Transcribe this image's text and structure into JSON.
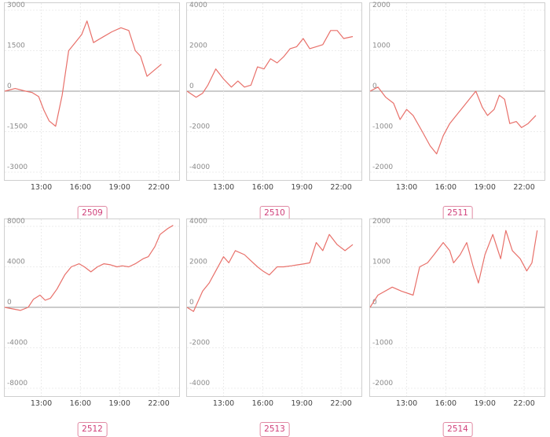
{
  "chart_data": [
    {
      "type": "line",
      "label": "2509",
      "yticks": [
        3000,
        1500,
        0,
        -1500,
        -3000
      ],
      "ylim": [
        -3000,
        3000
      ],
      "xticks": [
        "13:00",
        "16:00",
        "19:00",
        "22:00"
      ],
      "xtick_positions": [
        13,
        16,
        19,
        22
      ],
      "xlim": [
        10.2,
        23.5
      ],
      "grid": true,
      "color": "#e8706a",
      "series": [
        {
          "x": [
            10.2,
            11.0,
            11.8,
            12.3,
            12.8,
            13.2,
            13.6,
            14.1,
            14.6,
            15.1,
            15.6,
            16.1,
            16.5,
            17.0,
            17.7,
            18.4,
            19.1,
            19.7,
            20.2,
            20.6,
            21.1,
            22.2
          ],
          "y": [
            0,
            100,
            0,
            -50,
            -200,
            -700,
            -1100,
            -1300,
            -150,
            1500,
            1800,
            2100,
            2600,
            1800,
            2000,
            2200,
            2350,
            2250,
            1500,
            1300,
            550,
            1000
          ]
        }
      ]
    },
    {
      "type": "line",
      "label": "2510",
      "yticks": [
        4000,
        2000,
        0,
        -2000,
        -4000
      ],
      "ylim": [
        -4000,
        4000
      ],
      "xticks": [
        "13:00",
        "16:00",
        "19:00",
        "22:00"
      ],
      "xtick_positions": [
        13,
        16,
        19,
        22
      ],
      "xlim": [
        10.2,
        23.5
      ],
      "grid": true,
      "color": "#e8706a",
      "series": [
        {
          "x": [
            10.2,
            10.9,
            11.4,
            11.8,
            12.4,
            13.0,
            13.6,
            14.1,
            14.6,
            15.1,
            15.6,
            16.1,
            16.6,
            17.1,
            17.6,
            18.1,
            18.6,
            19.1,
            19.6,
            20.1,
            20.6,
            21.2,
            21.7,
            22.2,
            22.9
          ],
          "y": [
            0,
            -300,
            -100,
            300,
            1100,
            600,
            200,
            500,
            200,
            300,
            1200,
            1100,
            1600,
            1400,
            1700,
            2100,
            2200,
            2600,
            2100,
            2200,
            2300,
            3000,
            3000,
            2600,
            2700
          ]
        }
      ]
    },
    {
      "type": "line",
      "label": "2511",
      "yticks": [
        2000,
        1000,
        0,
        -1000,
        -2000
      ],
      "ylim": [
        -2000,
        2000
      ],
      "xticks": [
        "13:00",
        "16:00",
        "19:00",
        "22:00"
      ],
      "xtick_positions": [
        13,
        16,
        19,
        22
      ],
      "xlim": [
        10.2,
        23.5
      ],
      "grid": true,
      "color": "#e8706a",
      "series": [
        {
          "x": [
            10.2,
            10.8,
            11.4,
            12.0,
            12.5,
            13.0,
            13.5,
            14.2,
            14.8,
            15.3,
            15.8,
            16.3,
            16.8,
            17.3,
            17.8,
            18.3,
            18.8,
            19.2,
            19.7,
            20.1,
            20.5,
            20.9,
            21.4,
            21.8,
            22.3,
            22.9
          ],
          "y": [
            0,
            100,
            -150,
            -300,
            -700,
            -450,
            -600,
            -1000,
            -1350,
            -1550,
            -1100,
            -800,
            -600,
            -400,
            -200,
            0,
            -400,
            -600,
            -450,
            -100,
            -200,
            -800,
            -750,
            -900,
            -800,
            -600
          ]
        }
      ]
    },
    {
      "type": "line",
      "label": "2512",
      "yticks": [
        8000,
        4000,
        0,
        -4000,
        -8000
      ],
      "ylim": [
        -8000,
        8000
      ],
      "xticks": [
        "13:00",
        "16:00",
        "19:00",
        "22:00"
      ],
      "xtick_positions": [
        13,
        16,
        19,
        22
      ],
      "xlim": [
        10.2,
        23.5
      ],
      "grid": true,
      "color": "#e8706a",
      "series": [
        {
          "x": [
            10.2,
            11.4,
            12.0,
            12.4,
            12.9,
            13.3,
            13.7,
            14.2,
            14.8,
            15.3,
            15.9,
            16.3,
            16.8,
            17.3,
            17.8,
            18.3,
            18.8,
            19.2,
            19.7,
            20.2,
            20.8,
            21.2,
            21.7,
            22.1,
            22.7,
            23.1
          ],
          "y": [
            0,
            -300,
            0,
            800,
            1200,
            700,
            900,
            1800,
            3200,
            4000,
            4300,
            4000,
            3500,
            4000,
            4300,
            4200,
            4000,
            4100,
            4000,
            4300,
            4800,
            5000,
            6000,
            7200,
            7800,
            8100
          ]
        }
      ]
    },
    {
      "type": "line",
      "label": "2513",
      "yticks": [
        4000,
        2000,
        0,
        -2000,
        -4000
      ],
      "ylim": [
        -4000,
        4000
      ],
      "xticks": [
        "13:00",
        "16:00",
        "19:00",
        "22:00"
      ],
      "xtick_positions": [
        13,
        16,
        19,
        22
      ],
      "xlim": [
        10.2,
        23.5
      ],
      "grid": true,
      "color": "#e8706a",
      "series": [
        {
          "x": [
            10.2,
            10.7,
            11.4,
            11.9,
            12.4,
            13.0,
            13.4,
            13.9,
            14.6,
            15.1,
            15.6,
            16.0,
            16.5,
            17.1,
            17.6,
            18.2,
            18.7,
            19.2,
            19.6,
            20.1,
            20.6,
            21.1,
            21.7,
            22.3,
            22.9
          ],
          "y": [
            0,
            -200,
            800,
            1200,
            1800,
            2500,
            2200,
            2800,
            2600,
            2300,
            2000,
            1800,
            1600,
            2000,
            2000,
            2050,
            2100,
            2150,
            2200,
            3200,
            2800,
            3600,
            3100,
            2800,
            3100
          ]
        }
      ]
    },
    {
      "type": "line",
      "label": "2514",
      "yticks": [
        2000,
        1000,
        0,
        -1000,
        -2000
      ],
      "ylim": [
        -2000,
        2000
      ],
      "xticks": [
        "13:00",
        "16:00",
        "19:00",
        "22:00"
      ],
      "xtick_positions": [
        13,
        16,
        19,
        22
      ],
      "xlim": [
        10.2,
        23.5
      ],
      "grid": true,
      "color": "#e8706a",
      "series": [
        {
          "x": [
            10.2,
            10.8,
            11.9,
            12.6,
            13.5,
            14.0,
            14.6,
            15.1,
            15.8,
            16.3,
            16.6,
            17.1,
            17.6,
            18.1,
            18.5,
            19.0,
            19.6,
            20.2,
            20.6,
            21.1,
            21.7,
            22.2,
            22.6,
            23.0
          ],
          "y": [
            0,
            300,
            500,
            400,
            300,
            1000,
            1100,
            1300,
            1600,
            1400,
            1100,
            1300,
            1600,
            1000,
            600,
            1300,
            1800,
            1200,
            1900,
            1400,
            1200,
            900,
            1100,
            1900
          ]
        }
      ]
    }
  ]
}
